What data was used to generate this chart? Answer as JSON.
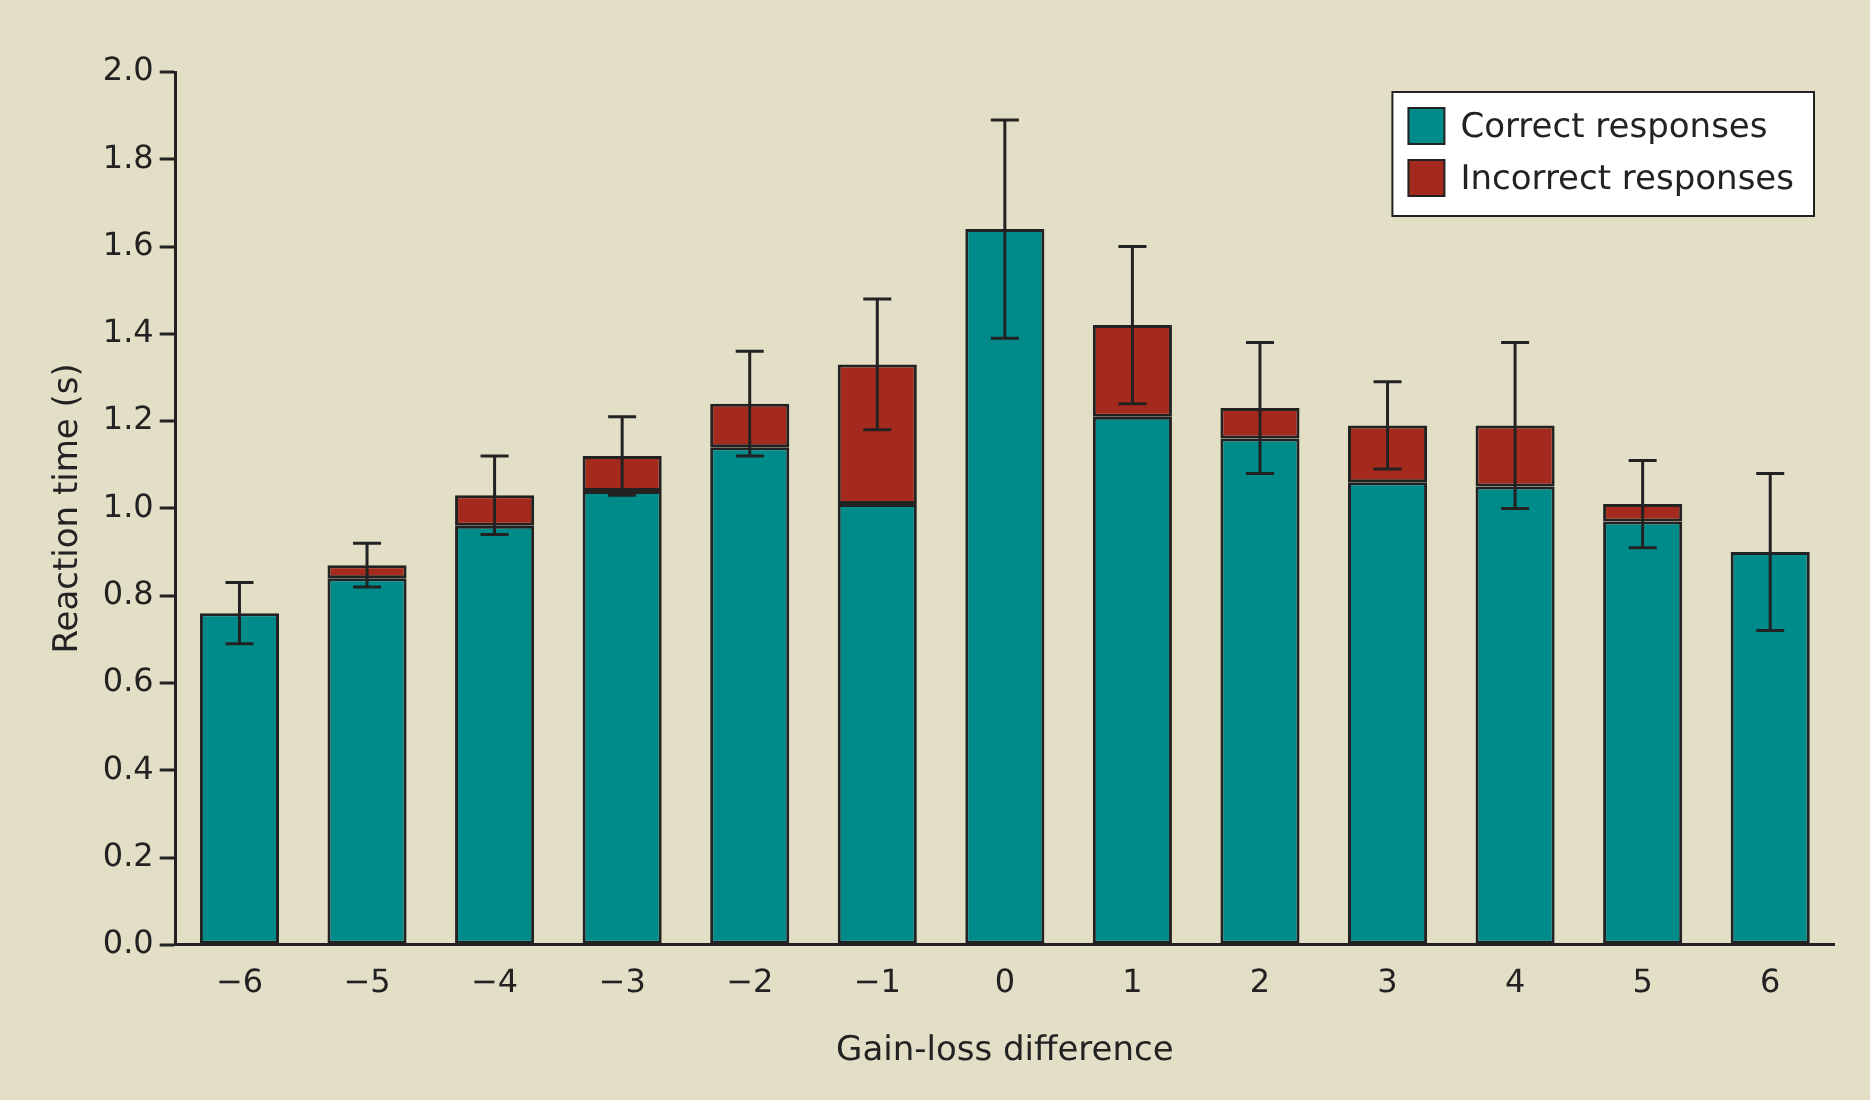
{
  "chart_data": {
    "type": "bar",
    "xlabel": "Gain-loss difference",
    "ylabel": "Reaction time (s)",
    "categories": [
      "−6",
      "−5",
      "−4",
      "−3",
      "−2",
      "−1",
      "0",
      "1",
      "2",
      "3",
      "4",
      "5",
      "6"
    ],
    "stacked": true,
    "series": [
      {
        "name": "Correct responses",
        "color": "#008b8b",
        "values": [
          0.76,
          0.84,
          0.96,
          1.04,
          1.14,
          1.01,
          1.64,
          1.21,
          1.16,
          1.06,
          1.05,
          0.97,
          0.9
        ],
        "errors": [
          0.07,
          null,
          null,
          null,
          null,
          null,
          0.25,
          null,
          null,
          null,
          null,
          null,
          0.18
        ]
      },
      {
        "name": "Incorrect responses",
        "color": "#a52a1e",
        "values": [
          null,
          0.03,
          0.07,
          0.08,
          0.1,
          0.32,
          null,
          0.21,
          0.07,
          0.13,
          0.14,
          0.04,
          null
        ],
        "errors": [
          null,
          0.05,
          0.09,
          0.09,
          0.12,
          0.15,
          null,
          0.18,
          0.15,
          0.1,
          0.19,
          0.1,
          null
        ]
      }
    ],
    "ylim": [
      0,
      2
    ],
    "yticks": [
      {
        "value": 0,
        "label": "0.0"
      },
      0.2,
      0.4,
      0.6,
      0.8,
      {
        "value": 1,
        "label": "1.0"
      },
      1.2,
      1.4,
      1.6,
      1.8,
      {
        "value": 2,
        "label": "2.0"
      }
    ],
    "legend": "top right",
    "grid": false
  }
}
